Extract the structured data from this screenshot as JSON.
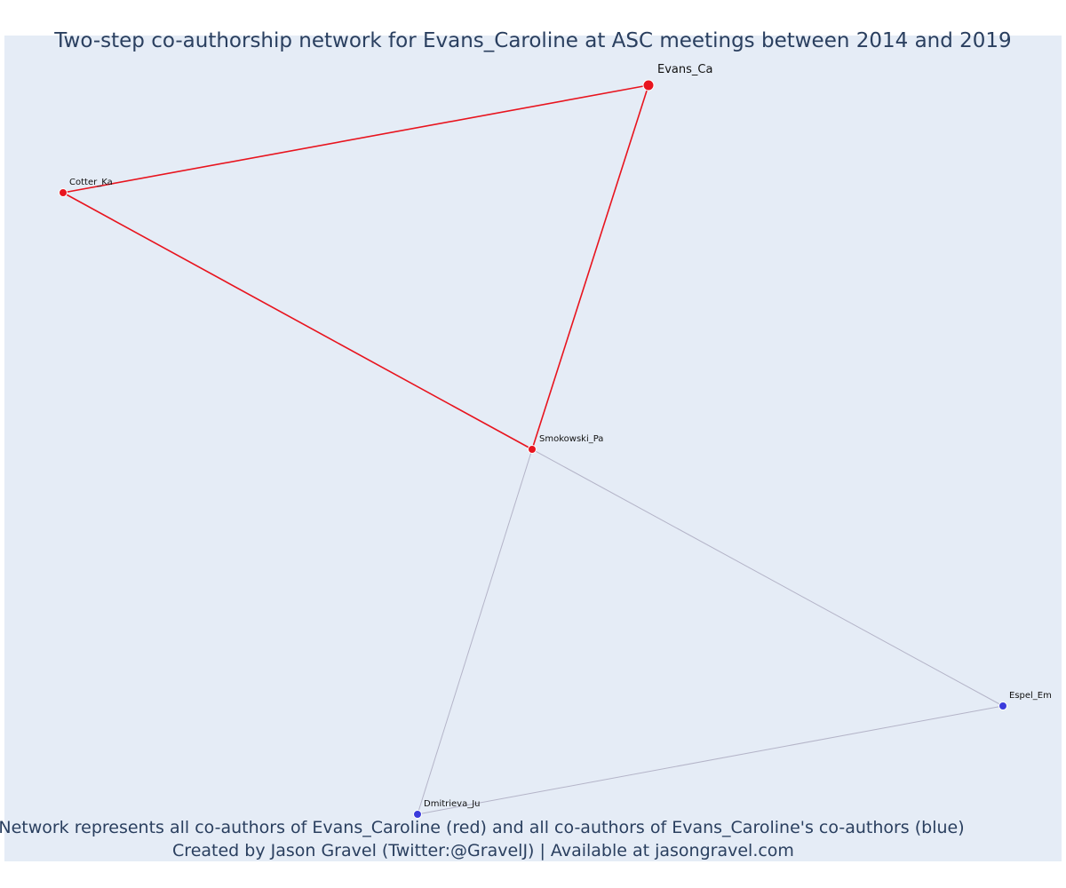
{
  "title": "Two-step co-authorship network for Evans_Caroline at ASC meetings between 2014 and 2019",
  "footer": {
    "line1": "Network represents all co-authors of Evans_Caroline (red) and all co-authors of Evans_Caroline's co-authors (blue)",
    "line2": "Created by Jason Gravel (Twitter:@GravelJ) | Available at jasongravel.com"
  },
  "colors": {
    "background": "#e5ecf6",
    "first_degree": "#e8141e",
    "second_degree": "#3b3bdc",
    "second_degree_edge": "#b4b4c8",
    "text": "#2a3f5f"
  },
  "nodes": [
    {
      "id": "evans",
      "label": "Evans_Ca",
      "group": "ego"
    },
    {
      "id": "cotter",
      "label": "Cotter_Ka",
      "group": "first_degree"
    },
    {
      "id": "smokowski",
      "label": "Smokowski_Pa",
      "group": "first_degree"
    },
    {
      "id": "espel",
      "label": "Espel_Em",
      "group": "second_degree"
    },
    {
      "id": "dmitrieva",
      "label": "Dmitrieva_Ju",
      "group": "second_degree"
    }
  ],
  "edges": [
    {
      "source": "evans",
      "target": "cotter",
      "group": "first_degree"
    },
    {
      "source": "evans",
      "target": "smokowski",
      "group": "first_degree"
    },
    {
      "source": "cotter",
      "target": "smokowski",
      "group": "first_degree"
    },
    {
      "source": "smokowski",
      "target": "espel",
      "group": "second_degree"
    },
    {
      "source": "smokowski",
      "target": "dmitrieva",
      "group": "second_degree"
    },
    {
      "source": "dmitrieva",
      "target": "espel",
      "group": "second_degree"
    }
  ]
}
